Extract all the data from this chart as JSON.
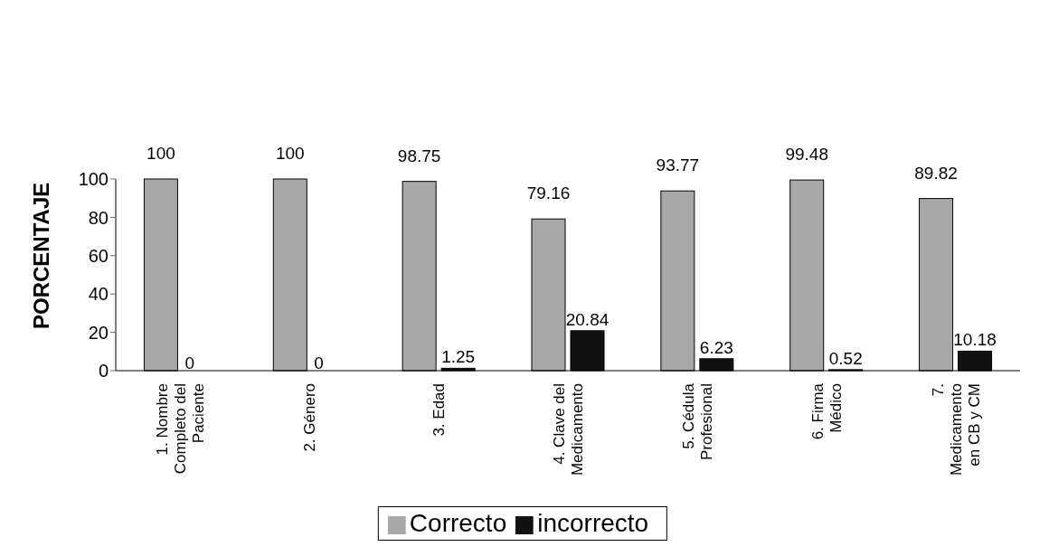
{
  "chart_data": {
    "type": "bar",
    "ylabel": "PORCENTAJE",
    "categories": [
      "1. Nombre Completo del Paciente",
      "2. Género",
      "3. Edad",
      "4. Clave del Medicamento",
      "5. Cédula Profesional",
      "6. Firma Médico",
      "7. Medicamento en CB y CM"
    ],
    "series": [
      {
        "name": "Correcto",
        "color": "#a8a8a8",
        "values": [
          100,
          100,
          98.75,
          79.16,
          93.77,
          99.48,
          89.82
        ]
      },
      {
        "name": "incorrecto",
        "color": "#111111",
        "values": [
          0,
          0,
          1.25,
          20.84,
          6.23,
          0.52,
          10.18
        ]
      }
    ],
    "ylim": [
      0,
      100
    ],
    "yticks": [
      0,
      20,
      40,
      60,
      80,
      100
    ],
    "grid": false,
    "legend": "bottom",
    "data_labels": true
  }
}
